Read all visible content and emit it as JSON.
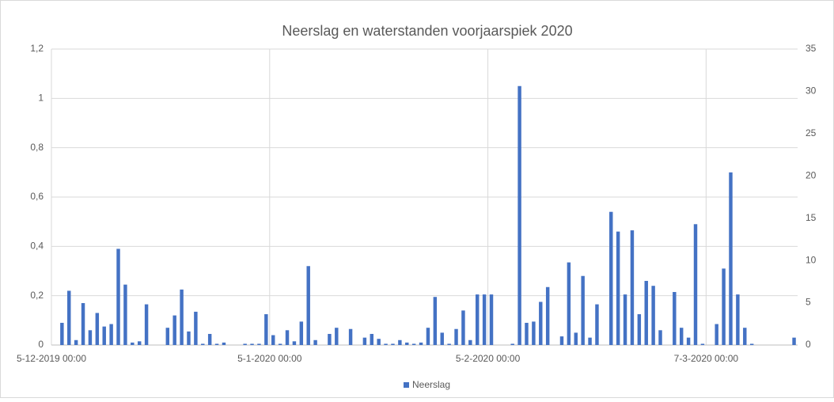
{
  "chart_data": {
    "type": "bar",
    "title": "Neerslag en waterstanden voorjaarspiek 2020",
    "categories": [
      "5-12-2019 00:00",
      null,
      null,
      null,
      null,
      null,
      null,
      null,
      null,
      null,
      null,
      null,
      null,
      null,
      null,
      null,
      null,
      null,
      null,
      null,
      null,
      null,
      null,
      null,
      null,
      null,
      null,
      null,
      null,
      null,
      null,
      "5-1-2020 00:00",
      null,
      null,
      null,
      null,
      null,
      null,
      null,
      null,
      null,
      null,
      null,
      null,
      null,
      null,
      null,
      null,
      null,
      null,
      null,
      null,
      null,
      null,
      null,
      null,
      null,
      null,
      null,
      null,
      null,
      null,
      "5-2-2020 00:00",
      null,
      null,
      null,
      null,
      null,
      null,
      null,
      null,
      null,
      null,
      null,
      null,
      null,
      null,
      null,
      null,
      null,
      null,
      null,
      null,
      null,
      null,
      null,
      null,
      null,
      null,
      null,
      null,
      null,
      null,
      "7-3-2020 00:00",
      null,
      null,
      null,
      null,
      null,
      null,
      null,
      null,
      null,
      null,
      null,
      null
    ],
    "series": [
      {
        "name": "Neerslag",
        "color": "#4472c4",
        "values": [
          0,
          0.09,
          0.22,
          0.02,
          0.17,
          0.06,
          0.13,
          0.075,
          0.085,
          0.39,
          0.245,
          0.01,
          0.015,
          0.165,
          0,
          0,
          0.07,
          0.12,
          0.225,
          0.055,
          0.135,
          0.005,
          0.045,
          0.005,
          0.01,
          0,
          0,
          0.005,
          0.005,
          0.005,
          0.125,
          0.04,
          0.005,
          0.06,
          0.015,
          0.095,
          0.32,
          0.02,
          0,
          0.045,
          0.07,
          0,
          0.065,
          0,
          0.03,
          0.045,
          0.025,
          0.005,
          0.005,
          0.02,
          0.01,
          0.005,
          0.01,
          0.07,
          0.195,
          0.05,
          0.005,
          0.065,
          0.14,
          0.02,
          0.205,
          0.205,
          0.205,
          0,
          0,
          0.005,
          1.05,
          0.09,
          0.095,
          0.175,
          0.235,
          0,
          0.035,
          0.335,
          0.05,
          0.28,
          0.03,
          0.165,
          0,
          0.54,
          0.46,
          0.205,
          0.465,
          0.125,
          0.26,
          0.24,
          0.06,
          0,
          0.215,
          0.07,
          0.03,
          0.49,
          0.005,
          0,
          0.085,
          0.31,
          0.7,
          0.205,
          0.07,
          0.005,
          0,
          0,
          0,
          0,
          0,
          0.03
        ]
      }
    ],
    "ylim": [
      0,
      1.2
    ],
    "yticks": [
      0,
      {
        "value": 0.2,
        "label": "0,2"
      },
      {
        "value": 0.4,
        "label": "0,4"
      },
      {
        "value": 0.6,
        "label": "0,6"
      },
      {
        "value": 0.8,
        "label": "0,8"
      },
      1,
      {
        "value": 1.2,
        "label": "1,2"
      }
    ],
    "y2lim": [
      0,
      35
    ],
    "y2ticks": [
      0,
      5,
      10,
      15,
      20,
      25,
      30,
      35
    ],
    "grid": true,
    "legend": "bottom"
  }
}
